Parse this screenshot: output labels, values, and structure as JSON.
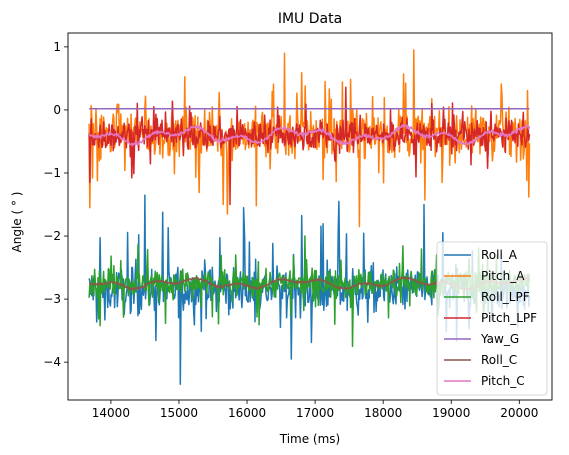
{
  "chart_data": {
    "type": "line",
    "title": "IMU Data",
    "xlabel": "Time (ms)",
    "ylabel": "Angle ( ° )",
    "xlim": [
      13370,
      20480
    ],
    "ylim": [
      -4.6,
      1.22
    ],
    "xticks": [
      14000,
      15000,
      16000,
      17000,
      18000,
      19000,
      20000
    ],
    "yticks": [
      -4,
      -3,
      -2,
      -1,
      0,
      1
    ],
    "legend_position": "lower right",
    "x_range": [
      13680,
      20150
    ],
    "series": [
      {
        "name": "Roll_A",
        "color": "#1f77b4",
        "style": "noisy",
        "mean": -2.85,
        "amplitude": 0.35,
        "peaks": [
          [
            15020,
            -4.35
          ],
          [
            14500,
            -1.35
          ],
          [
            17350,
            -1.45
          ],
          [
            15950,
            -1.55
          ],
          [
            18600,
            -1.5
          ],
          [
            16650,
            -3.95
          ]
        ]
      },
      {
        "name": "Pitch_A",
        "color": "#ff7f0e",
        "style": "noisy",
        "mean": -0.38,
        "amplitude": 0.38,
        "peaks": [
          [
            18450,
            0.95
          ],
          [
            16550,
            0.9
          ],
          [
            17650,
            -1.85
          ],
          [
            15650,
            -1.5
          ],
          [
            13690,
            -1.55
          ]
        ]
      },
      {
        "name": "Roll_LPF",
        "color": "#2ca02c",
        "style": "noisy",
        "mean": -2.75,
        "amplitude": 0.22,
        "peaks": [
          [
            17550,
            -3.75
          ],
          [
            16850,
            -2.0
          ]
        ]
      },
      {
        "name": "Pitch_LPF",
        "color": "#d62728",
        "style": "noisy",
        "mean": -0.4,
        "amplitude": 0.24,
        "peaks": [
          [
            13690,
            -1.15
          ],
          [
            15750,
            -1.5
          ]
        ]
      },
      {
        "name": "Yaw_G",
        "color": "#9467bd",
        "style": "flat",
        "mean": 0.02,
        "amplitude": 0.0,
        "peaks": []
      },
      {
        "name": "Roll_C",
        "color": "#8c564b",
        "style": "smooth",
        "mean": -2.75,
        "amplitude": 0.05,
        "peaks": []
      },
      {
        "name": "Pitch_C",
        "color": "#e377c2",
        "style": "smooth",
        "mean": -0.4,
        "amplitude": 0.08,
        "peaks": []
      }
    ]
  }
}
